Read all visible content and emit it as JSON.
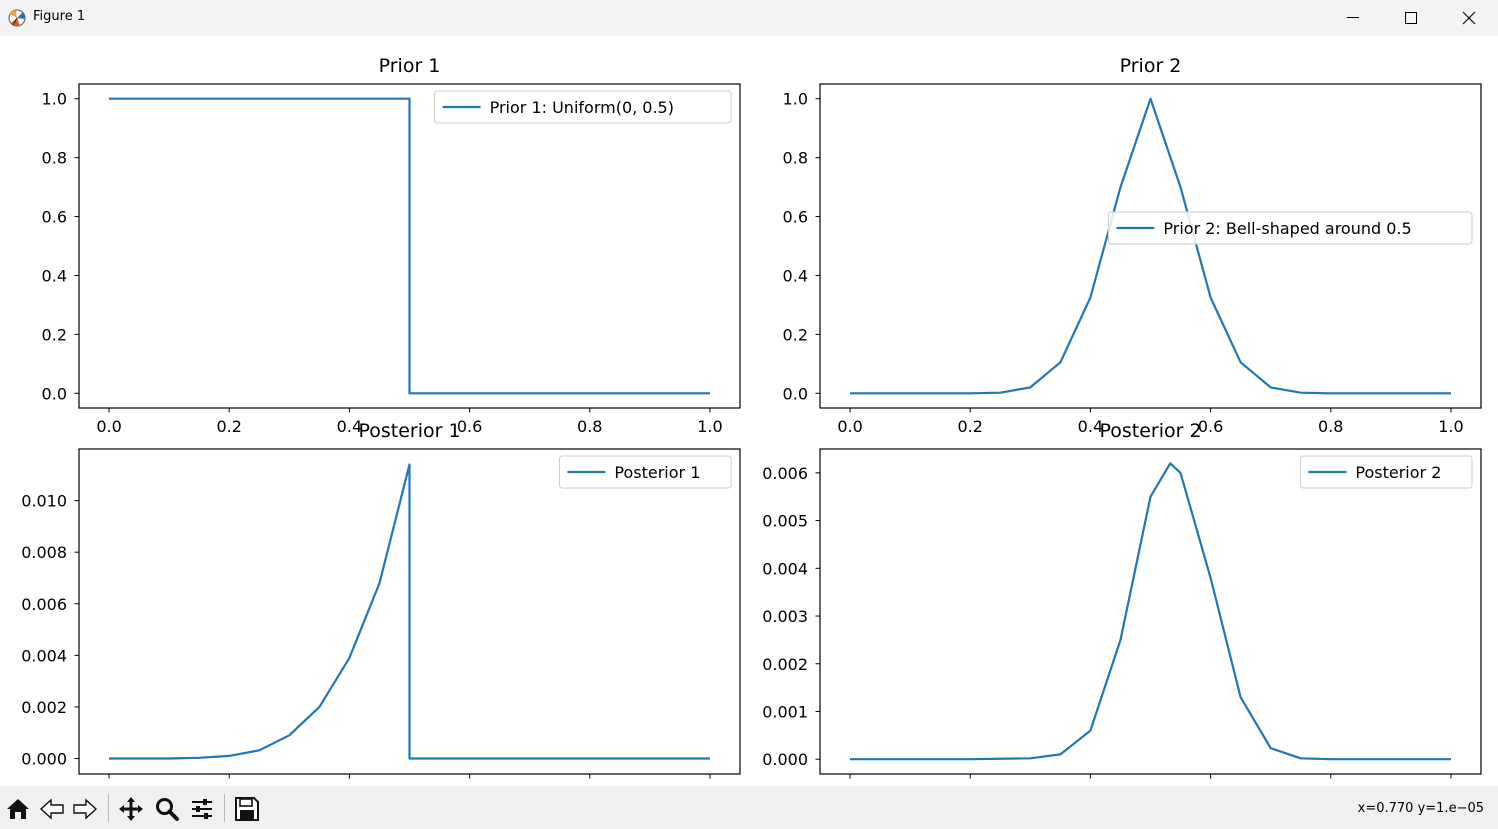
{
  "window": {
    "title": "Figure 1",
    "icon": "matplotlib-logo-icon",
    "controls": [
      "minimize-icon",
      "maximize-icon",
      "close-icon"
    ]
  },
  "chart_data": [
    {
      "type": "line",
      "title": "Prior 1",
      "xlabel": "",
      "ylabel": "",
      "xlim": [
        -0.05,
        1.05
      ],
      "ylim": [
        -0.05,
        1.05
      ],
      "xticks": [
        "0.0",
        "0.2",
        "0.4",
        "0.6",
        "0.8",
        "1.0"
      ],
      "yticks": [
        "0.0",
        "0.2",
        "0.4",
        "0.6",
        "0.8",
        "1.0"
      ],
      "legend": "top-right",
      "grid": false,
      "color": "#1f77b4",
      "series": [
        {
          "name": "Prior 1: Uniform(0, 0.5)",
          "x": [
            0.0,
            0.5,
            0.5,
            1.0
          ],
          "y": [
            1.0,
            1.0,
            0.0,
            0.0
          ]
        }
      ]
    },
    {
      "type": "line",
      "title": "Prior 2",
      "xlabel": "",
      "ylabel": "",
      "xlim": [
        -0.05,
        1.05
      ],
      "ylim": [
        -0.05,
        1.05
      ],
      "xticks": [
        "0.0",
        "0.2",
        "0.4",
        "0.6",
        "0.8",
        "1.0"
      ],
      "yticks": [
        "0.0",
        "0.2",
        "0.4",
        "0.6",
        "0.8",
        "1.0"
      ],
      "legend": "center-right",
      "grid": false,
      "color": "#1f77b4",
      "series": [
        {
          "name": "Prior 2: Bell-shaped around 0.5",
          "x": [
            0.0,
            0.1,
            0.2,
            0.25,
            0.3,
            0.35,
            0.4,
            0.45,
            0.5,
            0.55,
            0.6,
            0.65,
            0.7,
            0.75,
            0.8,
            0.9,
            1.0
          ],
          "y": [
            0.0,
            0.0,
            0.0,
            0.002,
            0.02,
            0.105,
            0.325,
            0.7,
            1.0,
            0.7,
            0.325,
            0.105,
            0.02,
            0.002,
            0.0,
            0.0,
            0.0
          ]
        }
      ]
    },
    {
      "type": "line",
      "title": "Posterior 1",
      "xlabel": "",
      "ylabel": "",
      "xlim": [
        -0.05,
        1.05
      ],
      "ylim": [
        -0.0006,
        0.012
      ],
      "xticks": [
        "0.0",
        "0.2",
        "0.4",
        "0.6",
        "0.8",
        "1.0"
      ],
      "yticks": [
        "0.000",
        "0.002",
        "0.004",
        "0.006",
        "0.008",
        "0.010"
      ],
      "legend": "top-right",
      "grid": false,
      "color": "#1f77b4",
      "series": [
        {
          "name": "Posterior 1",
          "x": [
            0.0,
            0.1,
            0.15,
            0.2,
            0.25,
            0.3,
            0.35,
            0.4,
            0.45,
            0.5,
            0.5,
            0.6,
            0.8,
            1.0
          ],
          "y": [
            0.0,
            0.0,
            3e-05,
            0.0001,
            0.00032,
            0.0009,
            0.002,
            0.0039,
            0.0068,
            0.0114,
            0.0,
            0.0,
            0.0,
            0.0
          ]
        }
      ]
    },
    {
      "type": "line",
      "title": "Posterior 2",
      "xlabel": "",
      "ylabel": "",
      "xlim": [
        -0.05,
        1.05
      ],
      "ylim": [
        -0.00031,
        0.0065
      ],
      "xticks": [
        "0.0",
        "0.2",
        "0.4",
        "0.6",
        "0.8",
        "1.0"
      ],
      "yticks": [
        "0.000",
        "0.001",
        "0.002",
        "0.003",
        "0.004",
        "0.005",
        "0.006"
      ],
      "legend": "top-right",
      "grid": false,
      "color": "#1f77b4",
      "series": [
        {
          "name": "Posterior 2",
          "x": [
            0.0,
            0.2,
            0.3,
            0.35,
            0.4,
            0.45,
            0.5,
            0.533,
            0.55,
            0.6,
            0.65,
            0.7,
            0.75,
            0.8,
            1.0
          ],
          "y": [
            0.0,
            0.0,
            2e-05,
            0.0001,
            0.0006,
            0.0025,
            0.0055,
            0.0062,
            0.006,
            0.0038,
            0.0013,
            0.00023,
            2e-05,
            0.0,
            0.0
          ]
        }
      ]
    }
  ],
  "toolbar": {
    "buttons": [
      "home-icon",
      "back-icon",
      "forward-icon",
      "pan-icon",
      "zoom-icon",
      "configure-subplots-icon",
      "save-icon"
    ],
    "coords": "x=0.770 y=1.e−05"
  }
}
